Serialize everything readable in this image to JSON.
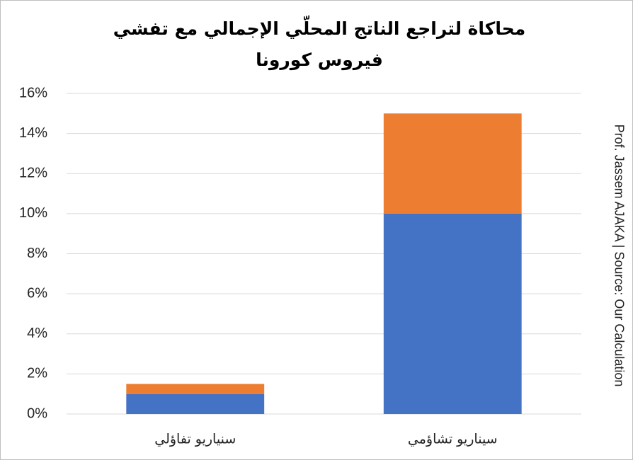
{
  "chart_data": {
    "type": "stacked_bar",
    "title": "محاكاة لتراجع الناتج المحلّي الإجمالي مع تفشي فيروس كورونا",
    "annotation": "Prof. Jassem AJAKA | Source:  Our Calculation",
    "categories": [
      "سنياريو تفاؤلي",
      "سيناريو تشاؤمي"
    ],
    "series": [
      {
        "color": "#4472c4",
        "values": [
          1,
          10
        ]
      },
      {
        "color": "#ed7d31",
        "values": [
          0.5,
          5
        ]
      }
    ],
    "ylim": [
      0,
      16
    ],
    "yticks": [
      {
        "value": 0,
        "label": "0%"
      },
      {
        "value": 2,
        "label": "2%"
      },
      {
        "value": 4,
        "label": "4%"
      },
      {
        "value": 6,
        "label": "6%"
      },
      {
        "value": 8,
        "label": "8%"
      },
      {
        "value": 10,
        "label": "10%"
      },
      {
        "value": 12,
        "label": "12%"
      },
      {
        "value": 14,
        "label": "14%"
      },
      {
        "value": 16,
        "label": "16%"
      }
    ],
    "grid": true
  }
}
